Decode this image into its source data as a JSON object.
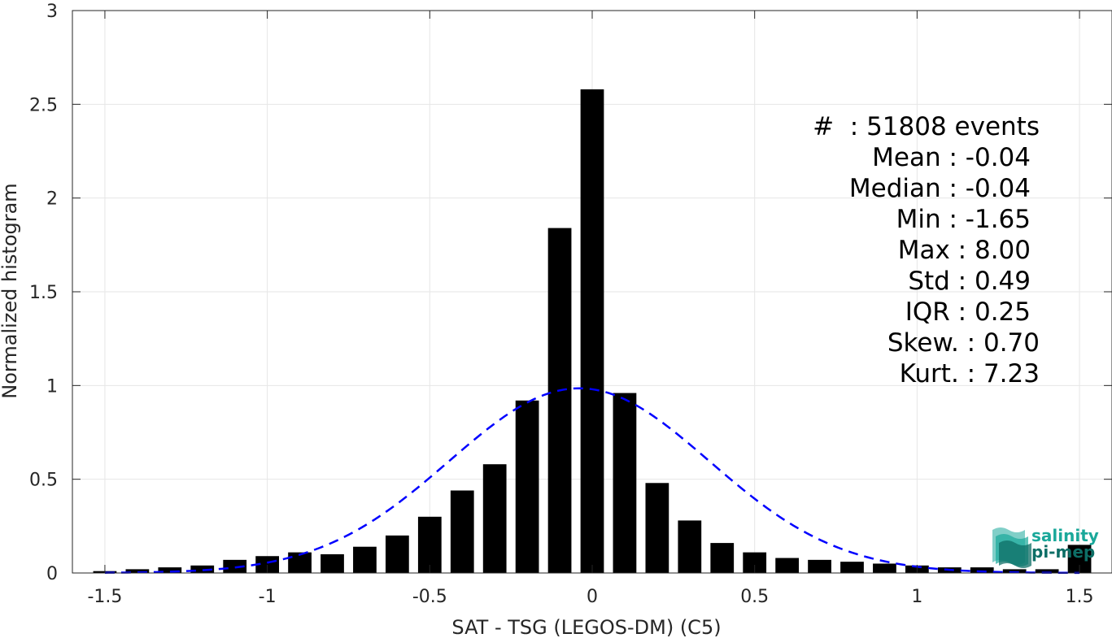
{
  "chart_data": {
    "type": "bar",
    "xlabel": "SAT - TSG (LEGOS-DM) (C5)",
    "ylabel": "Normalized histogram",
    "xlim": [
      -1.6,
      1.6
    ],
    "ylim": [
      0,
      3
    ],
    "xticks": [
      "-1.5",
      "-1",
      "-0.5",
      "0",
      "0.5",
      "1",
      "1.5"
    ],
    "xtick_values": [
      -1.5,
      -1,
      -0.5,
      0,
      0.5,
      1,
      1.5
    ],
    "yticks": [
      "0",
      "0.5",
      "1",
      "1.5",
      "2",
      "2.5",
      "3"
    ],
    "ytick_values": [
      0,
      0.5,
      1,
      1.5,
      2,
      2.5,
      3
    ],
    "grid": true,
    "bar_color": "#000000",
    "bins": [
      -1.5,
      -1.4,
      -1.3,
      -1.2,
      -1.1,
      -1.0,
      -0.9,
      -0.8,
      -0.7,
      -0.6,
      -0.5,
      -0.4,
      -0.3,
      -0.2,
      -0.1,
      0.0,
      0.1,
      0.2,
      0.3,
      0.4,
      0.5,
      0.6,
      0.7,
      0.8,
      0.9,
      1.0,
      1.1,
      1.2,
      1.3,
      1.4,
      1.5
    ],
    "values": [
      0.01,
      0.02,
      0.03,
      0.04,
      0.07,
      0.09,
      0.11,
      0.1,
      0.14,
      0.2,
      0.3,
      0.44,
      0.58,
      0.92,
      1.84,
      2.58,
      0.96,
      0.48,
      0.28,
      0.16,
      0.11,
      0.08,
      0.07,
      0.06,
      0.05,
      0.04,
      0.03,
      0.03,
      0.02,
      0.02,
      0.15
    ],
    "fit_curve": {
      "type": "gaussian",
      "mean": -0.04,
      "std": 0.4,
      "peak": 0.985,
      "color": "#0000ff",
      "style": "dashed"
    }
  },
  "stats": {
    "events": "#  : 51808 events",
    "mean": "Mean : -0.04",
    "median": "Median : -0.04",
    "min": "Min : -1.65",
    "max": "Max : 8.00",
    "std": "Std : 0.49",
    "iqr": "IQR : 0.25",
    "skew": "Skew. : 0.70",
    "kurt": "Kurt. : 7.23"
  },
  "logo": {
    "line1": "salinity",
    "line2": "pi-mep",
    "color1": "#1aa89a",
    "color2": "#0d6e66"
  }
}
